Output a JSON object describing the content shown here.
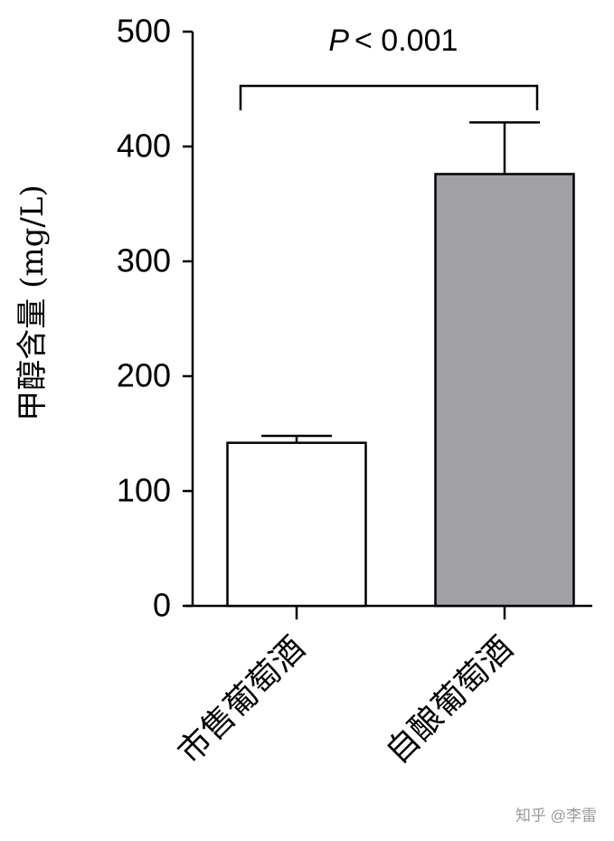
{
  "chart_data": {
    "type": "bar",
    "categories": [
      "市售葡萄酒",
      "自酿葡萄酒"
    ],
    "values": [
      142,
      376
    ],
    "errors": [
      6,
      45
    ],
    "colors": [
      "#ffffff",
      "#a0a0a5"
    ],
    "ylabel": "甲醇含量 (mg/L)",
    "ylim": [
      0,
      500
    ],
    "yticks": [
      0,
      100,
      200,
      300,
      400,
      500
    ],
    "significance": {
      "symbol": "P",
      "text": "< 0.001"
    },
    "watermark": "知乎 @李雷"
  }
}
